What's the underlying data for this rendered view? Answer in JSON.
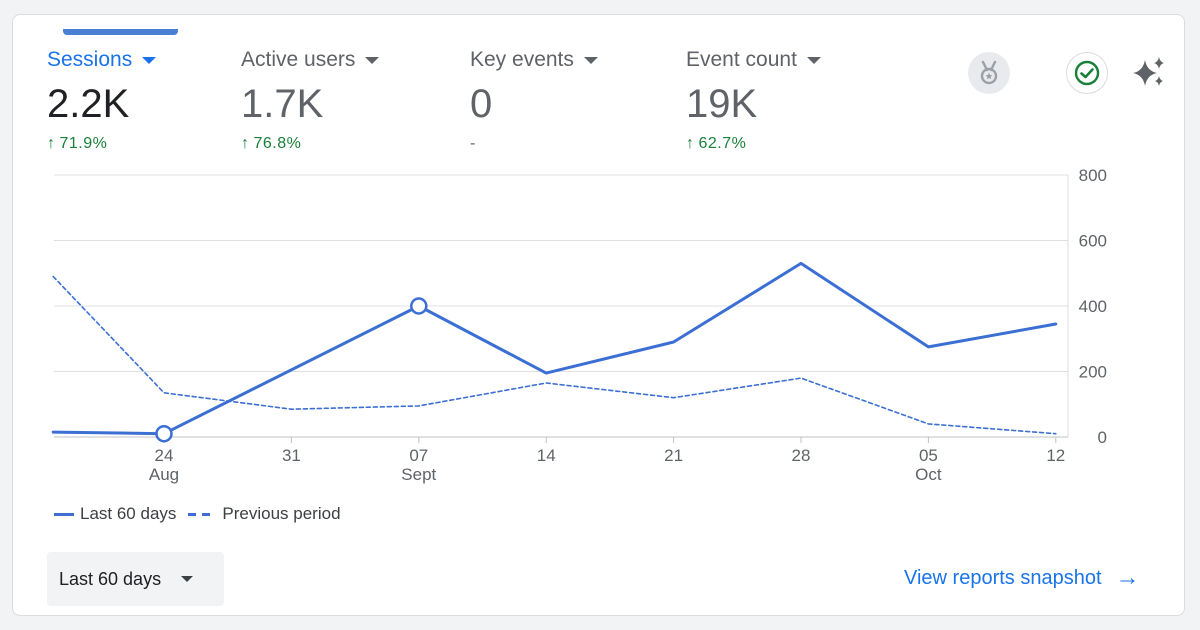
{
  "metrics": [
    {
      "label": "Sessions",
      "value": "2.2K",
      "change": "71.9%",
      "trend": "up"
    },
    {
      "label": "Active users",
      "value": "1.7K",
      "change": "76.8%",
      "trend": "up"
    },
    {
      "label": "Key events",
      "value": "0",
      "change": "-",
      "trend": "none"
    },
    {
      "label": "Event count",
      "value": "19K",
      "change": "62.7%",
      "trend": "up"
    }
  ],
  "icons": {
    "badge": "medal-icon",
    "status": "check-circle-icon",
    "insights": "sparkle-icon"
  },
  "colors": {
    "accent": "#1a73e8",
    "line": "#3b6fd4",
    "positive": "#188038"
  },
  "legend": {
    "current": "Last 60 days",
    "previous": "Previous period"
  },
  "date_range": {
    "selected": "Last 60 days"
  },
  "snapshot_link": "View reports snapshot",
  "chart_data": {
    "type": "line",
    "y_ticks": [
      "800",
      "600",
      "400",
      "200",
      "0"
    ],
    "ylim": [
      0,
      800
    ],
    "x_ticks": [
      {
        "day": "24",
        "month": "Aug"
      },
      {
        "day": "31",
        "month": ""
      },
      {
        "day": "07",
        "month": "Sept"
      },
      {
        "day": "14",
        "month": ""
      },
      {
        "day": "21",
        "month": ""
      },
      {
        "day": "28",
        "month": ""
      },
      {
        "day": "05",
        "month": "Oct"
      },
      {
        "day": "12",
        "month": ""
      }
    ],
    "series": [
      {
        "name": "Last 60 days",
        "style": "solid",
        "points": [
          [
            -0.87,
            15
          ],
          [
            0,
            10
          ],
          [
            2,
            400
          ],
          [
            3,
            195
          ],
          [
            4,
            290
          ],
          [
            5,
            530
          ],
          [
            6,
            275
          ],
          [
            7,
            345
          ]
        ],
        "markers": [
          1,
          2
        ]
      },
      {
        "name": "Previous period",
        "style": "dashed",
        "points": [
          [
            -0.87,
            490
          ],
          [
            0,
            135
          ],
          [
            1,
            85
          ],
          [
            2,
            95
          ],
          [
            3,
            165
          ],
          [
            4,
            120
          ],
          [
            5,
            180
          ],
          [
            6,
            40
          ],
          [
            7,
            10
          ]
        ]
      }
    ]
  }
}
